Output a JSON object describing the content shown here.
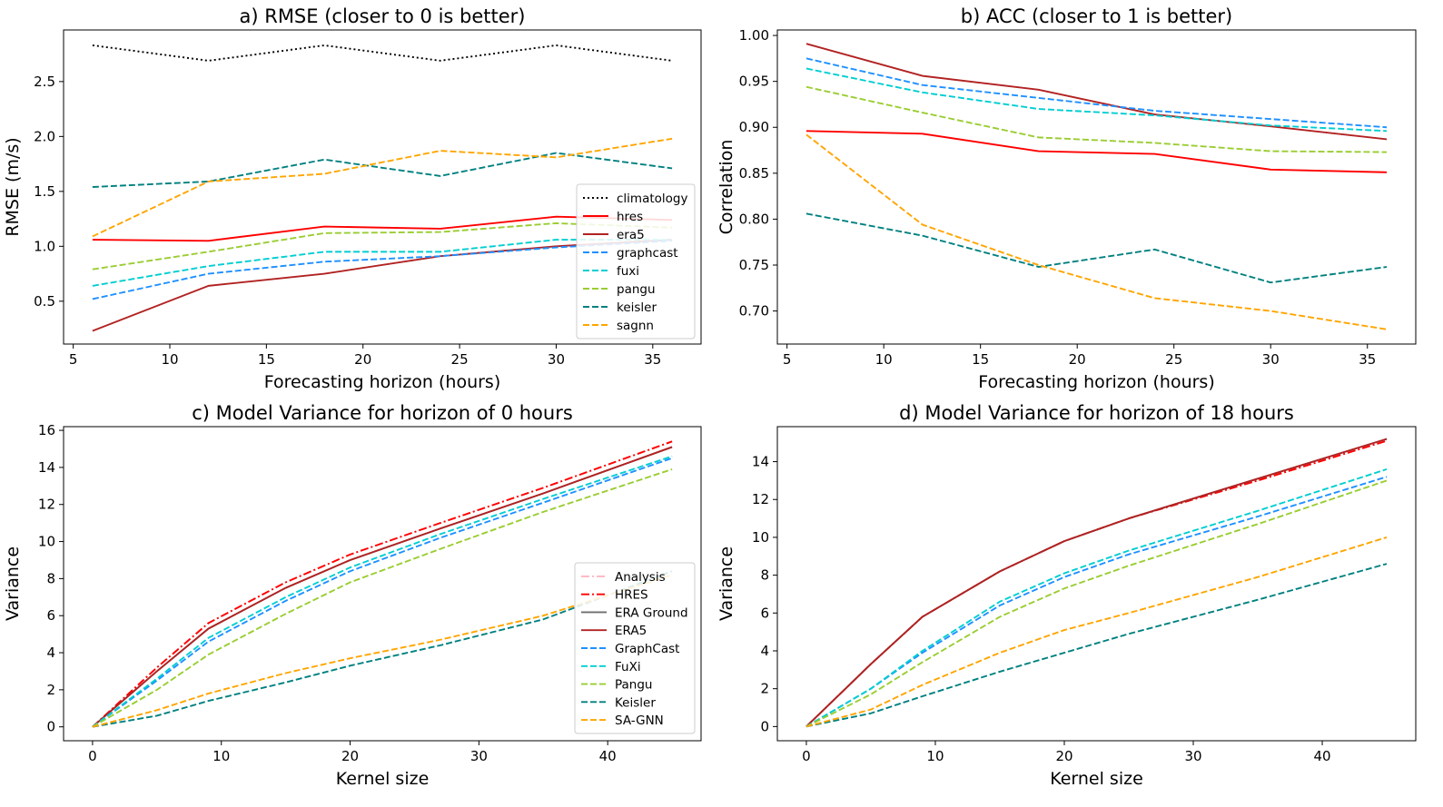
{
  "chart_data": [
    {
      "type": "line",
      "title": "a) RMSE (closer to 0 is better)",
      "xlabel": "Forecasting horizon (hours)",
      "ylabel": "RMSE (m/s)",
      "x": [
        6,
        12,
        18,
        24,
        30,
        36
      ],
      "xlim": [
        4.5,
        37.5
      ],
      "ylim": [
        0.11,
        2.97
      ],
      "xticks": [
        "5",
        "10",
        "15",
        "20",
        "25",
        "30",
        "35"
      ],
      "yticks": [
        "0.5",
        "1.0",
        "1.5",
        "2.0",
        "2.5"
      ],
      "legend_position": "lower right",
      "series": [
        {
          "name": "climatology",
          "color": "#000000",
          "dash": "dotted",
          "values": [
            2.83,
            2.69,
            2.83,
            2.69,
            2.83,
            2.69
          ]
        },
        {
          "name": "hres",
          "color": "#ff0000",
          "dash": "solid",
          "values": [
            1.06,
            1.05,
            1.18,
            1.16,
            1.27,
            1.24
          ]
        },
        {
          "name": "era5",
          "color": "#b22222",
          "dash": "solid",
          "values": [
            0.23,
            0.64,
            0.75,
            0.91,
            1.0,
            1.06
          ]
        },
        {
          "name": "graphcast",
          "color": "#1e90ff",
          "dash": "dashed",
          "values": [
            0.52,
            0.75,
            0.86,
            0.91,
            0.99,
            1.05
          ]
        },
        {
          "name": "fuxi",
          "color": "#00ced1",
          "dash": "dashed",
          "values": [
            0.64,
            0.82,
            0.95,
            0.95,
            1.06,
            1.06
          ]
        },
        {
          "name": "pangu",
          "color": "#9acd32",
          "dash": "dashed",
          "values": [
            0.79,
            0.95,
            1.12,
            1.13,
            1.21,
            1.17
          ]
        },
        {
          "name": "keisler",
          "color": "#008080",
          "dash": "dashed",
          "values": [
            1.54,
            1.59,
            1.79,
            1.64,
            1.85,
            1.71
          ]
        },
        {
          "name": "sagnn",
          "color": "#ffa500",
          "dash": "dashed",
          "values": [
            1.09,
            1.59,
            1.66,
            1.87,
            1.81,
            1.98
          ]
        }
      ]
    },
    {
      "type": "line",
      "title": "b) ACC (closer to 1 is better)",
      "xlabel": "Forecasting horizon (hours)",
      "ylabel": "Correlation",
      "x": [
        6,
        12,
        18,
        24,
        30,
        36
      ],
      "xlim": [
        4.5,
        37.5
      ],
      "ylim": [
        0.664,
        1.006
      ],
      "xticks": [
        "5",
        "10",
        "15",
        "20",
        "25",
        "30",
        "35"
      ],
      "yticks": [
        "0.70",
        "0.75",
        "0.80",
        "0.85",
        "0.90",
        "0.95",
        "1.00"
      ],
      "series": [
        {
          "name": "hres",
          "color": "#ff0000",
          "dash": "solid",
          "values": [
            0.896,
            0.893,
            0.874,
            0.871,
            0.854,
            0.851
          ]
        },
        {
          "name": "era5",
          "color": "#b22222",
          "dash": "solid",
          "values": [
            0.991,
            0.956,
            0.941,
            0.914,
            0.901,
            0.887
          ]
        },
        {
          "name": "graphcast",
          "color": "#1e90ff",
          "dash": "dashed",
          "values": [
            0.975,
            0.946,
            0.932,
            0.918,
            0.909,
            0.9
          ]
        },
        {
          "name": "fuxi",
          "color": "#00ced1",
          "dash": "dashed",
          "values": [
            0.964,
            0.938,
            0.92,
            0.913,
            0.902,
            0.896
          ]
        },
        {
          "name": "pangu",
          "color": "#9acd32",
          "dash": "dashed",
          "values": [
            0.944,
            0.916,
            0.889,
            0.883,
            0.874,
            0.873
          ]
        },
        {
          "name": "keisler",
          "color": "#008080",
          "dash": "dashed",
          "values": [
            0.806,
            0.782,
            0.748,
            0.767,
            0.731,
            0.748
          ]
        },
        {
          "name": "sagnn",
          "color": "#ffa500",
          "dash": "dashed",
          "values": [
            0.892,
            0.794,
            0.75,
            0.714,
            0.7,
            0.68
          ]
        }
      ]
    },
    {
      "type": "line",
      "title": "c) Model Variance for horizon of 0 hours",
      "xlabel": "Kernel size",
      "ylabel": "Variance",
      "x": [
        0,
        5,
        9,
        15,
        20,
        27,
        35,
        45
      ],
      "xlim": [
        -2.25,
        47.25
      ],
      "ylim": [
        -0.75,
        16.2
      ],
      "xticks": [
        "0",
        "10",
        "20",
        "30",
        "40"
      ],
      "yticks": [
        "0",
        "2",
        "4",
        "6",
        "8",
        "10",
        "12",
        "14",
        "16"
      ],
      "legend_position": "lower right",
      "series": [
        {
          "name": "Analysis",
          "color": "#ffb6c1",
          "dash": "dashdot",
          "values": [
            0,
            3.2,
            5.6,
            7.8,
            9.3,
            11.0,
            12.9,
            15.4
          ]
        },
        {
          "name": "HRES",
          "color": "#ff0000",
          "dash": "dashdot",
          "values": [
            0,
            3.2,
            5.6,
            7.8,
            9.3,
            11.0,
            12.9,
            15.4
          ]
        },
        {
          "name": "ERA Ground",
          "color": "#6e6e6e",
          "dash": "solid",
          "values": [
            0,
            3.0,
            5.3,
            7.5,
            9.0,
            10.7,
            12.6,
            15.1
          ]
        },
        {
          "name": "ERA5",
          "color": "#b22222",
          "dash": "solid",
          "values": [
            0,
            3.0,
            5.3,
            7.5,
            9.0,
            10.7,
            12.6,
            15.1
          ]
        },
        {
          "name": "GraphCast",
          "color": "#1e90ff",
          "dash": "dashed",
          "values": [
            0,
            2.5,
            4.6,
            6.8,
            8.4,
            10.2,
            12.1,
            14.5
          ]
        },
        {
          "name": "FuXi",
          "color": "#00ced1",
          "dash": "dashed",
          "values": [
            0,
            2.6,
            4.8,
            7.0,
            8.6,
            10.4,
            12.3,
            14.6
          ]
        },
        {
          "name": "Pangu",
          "color": "#9acd32",
          "dash": "dashed",
          "values": [
            0,
            2.0,
            3.9,
            6.1,
            7.8,
            9.6,
            11.6,
            13.9
          ]
        },
        {
          "name": "Keisler",
          "color": "#008080",
          "dash": "dashed",
          "values": [
            0,
            0.6,
            1.4,
            2.4,
            3.3,
            4.4,
            5.8,
            8.4
          ]
        },
        {
          "name": "SA-GNN",
          "color": "#ffa500",
          "dash": "dashed",
          "values": [
            0,
            0.9,
            1.8,
            2.9,
            3.7,
            4.7,
            6.0,
            8.2
          ]
        }
      ]
    },
    {
      "type": "line",
      "title": "d) Model Variance for horizon of 18 hours",
      "xlabel": "Kernel size",
      "ylabel": "Variance",
      "x": [
        0,
        5,
        9,
        15,
        20,
        25,
        35,
        45
      ],
      "xlim": [
        -2.25,
        47.25
      ],
      "ylim": [
        -0.75,
        15.85
      ],
      "xticks": [
        "0",
        "10",
        "20",
        "30",
        "40"
      ],
      "yticks": [
        "0",
        "2",
        "4",
        "6",
        "8",
        "10",
        "12",
        "14"
      ],
      "series": [
        {
          "name": "Analysis",
          "color": "#ffb6c1",
          "dash": "dashdot",
          "values": [
            0,
            3.3,
            5.8,
            8.2,
            9.8,
            11.0,
            13.0,
            15.1
          ]
        },
        {
          "name": "HRES",
          "color": "#ff0000",
          "dash": "dashdot",
          "values": [
            0,
            3.3,
            5.8,
            8.2,
            9.8,
            11.0,
            13.0,
            15.1
          ]
        },
        {
          "name": "ERA Ground",
          "color": "#6e6e6e",
          "dash": "solid",
          "values": [
            0,
            3.3,
            5.8,
            8.2,
            9.8,
            11.0,
            13.1,
            15.2
          ]
        },
        {
          "name": "ERA5",
          "color": "#b22222",
          "dash": "solid",
          "values": [
            0,
            3.3,
            5.8,
            8.2,
            9.8,
            11.0,
            13.1,
            15.2
          ]
        },
        {
          "name": "GraphCast",
          "color": "#1e90ff",
          "dash": "dashed",
          "values": [
            0,
            2.0,
            3.9,
            6.4,
            7.9,
            9.1,
            11.1,
            13.2
          ]
        },
        {
          "name": "FuXi",
          "color": "#00ced1",
          "dash": "dashed",
          "values": [
            0,
            2.0,
            4.0,
            6.6,
            8.1,
            9.3,
            11.4,
            13.6
          ]
        },
        {
          "name": "Pangu",
          "color": "#9acd32",
          "dash": "dashed",
          "values": [
            0,
            1.7,
            3.4,
            5.8,
            7.3,
            8.5,
            10.7,
            13.0
          ]
        },
        {
          "name": "Keisler",
          "color": "#008080",
          "dash": "dashed",
          "values": [
            0,
            0.7,
            1.6,
            2.9,
            3.9,
            4.9,
            6.7,
            8.6
          ]
        },
        {
          "name": "SA-GNN",
          "color": "#ffa500",
          "dash": "dashed",
          "values": [
            0,
            0.9,
            2.2,
            3.9,
            5.1,
            6.0,
            7.9,
            10.0
          ]
        }
      ]
    }
  ]
}
